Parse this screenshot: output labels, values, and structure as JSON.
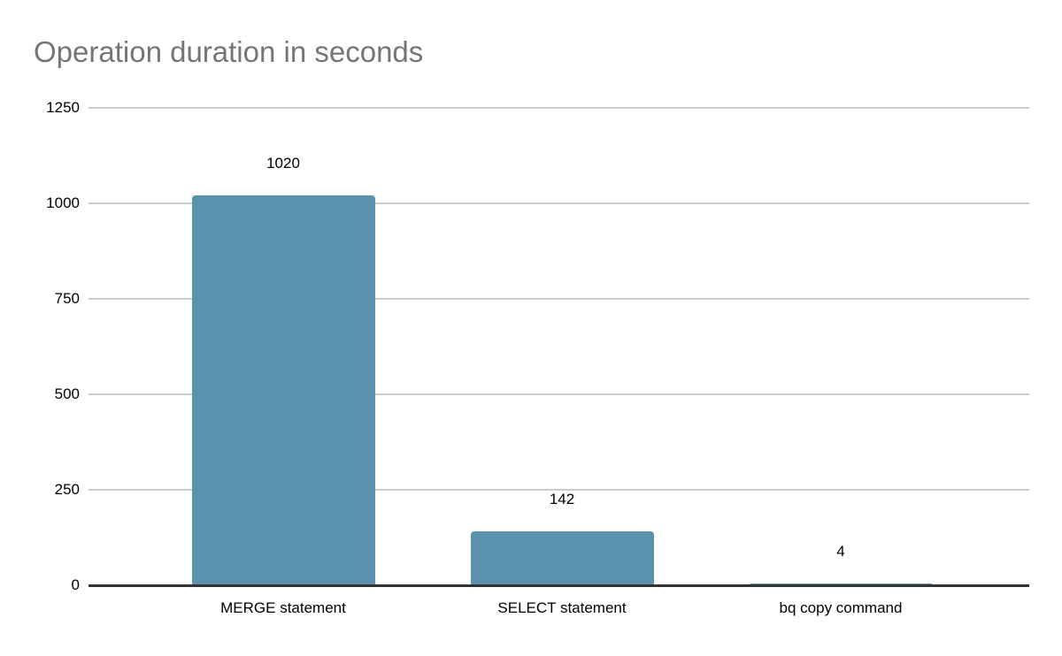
{
  "chart_data": {
    "type": "bar",
    "title": "Operation duration in seconds",
    "categories": [
      "MERGE statement",
      "SELECT statement",
      "bq copy command"
    ],
    "values": [
      1020,
      142,
      4
    ],
    "value_labels": [
      "1020",
      "142",
      "4"
    ],
    "y_ticks": [
      0,
      250,
      500,
      750,
      1000,
      1250
    ],
    "ylim": [
      0,
      1250
    ],
    "xlabel": "",
    "ylabel": "",
    "legend": "none",
    "grid": "horizontal",
    "colors": {
      "bar": "#5a91ac",
      "title": "#757575",
      "gridline": "#cccccc",
      "axis_line": "#333333",
      "text": "#000000",
      "background": "#ffffff"
    }
  }
}
